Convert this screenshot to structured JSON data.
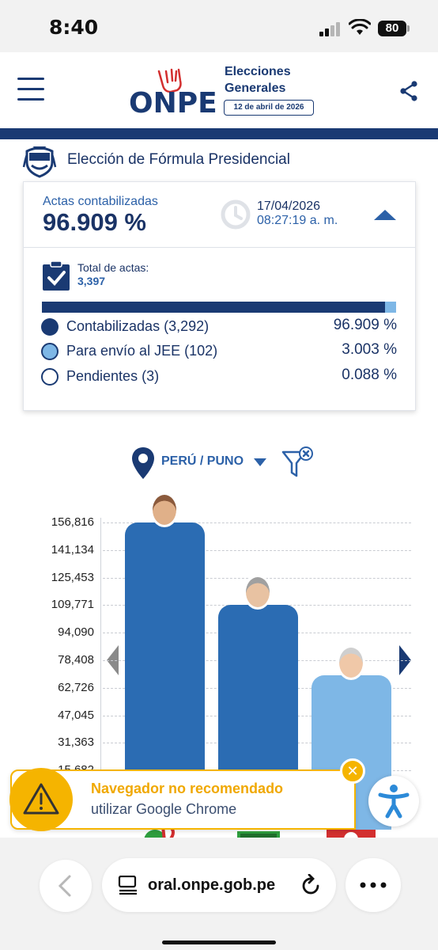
{
  "status_bar": {
    "time": "8:40",
    "battery": "80"
  },
  "header": {
    "logo_text": "ONPE",
    "title_line1": "Elecciones",
    "title_line2": "Generales",
    "date_badge": "12 de abril de 2026"
  },
  "election": {
    "title": "Elección de Fórmula Presidencial"
  },
  "summary": {
    "actas_label": "Actas contabilizadas",
    "actas_value": "96.909 %",
    "updated_date": "17/04/2026",
    "updated_time": "08:27:19 a. m.",
    "total_label": "Total de actas:",
    "total_value": "3,397",
    "progress": {
      "counted_fraction": 0.96909,
      "jee_fraction": 0.03003
    },
    "legend": [
      {
        "label": "Contabilizadas (3,292)",
        "pct": "96.909 %",
        "color": "#1a3a73"
      },
      {
        "label": "Para envío al JEE (102)",
        "pct": "3.003 %",
        "color": "#7eb7e6"
      },
      {
        "label": "Pendientes (3)",
        "pct": "0.088 %",
        "color": "#ffffff"
      }
    ]
  },
  "location": {
    "label": "PERÚ / PUNO"
  },
  "chart_data": {
    "type": "bar",
    "ylim": [
      0,
      156816
    ],
    "y_ticks": [
      "156,816",
      "141,134",
      "125,453",
      "109,771",
      "94,090",
      "78,408",
      "62,726",
      "47,045",
      "31,363",
      "15,682"
    ],
    "values": [
      156816,
      110000,
      70000
    ],
    "colors": [
      "#2b6cb3",
      "#2b6cb3",
      "#7eb7e6"
    ],
    "grid": true
  },
  "toast": {
    "title": "Navegador no recomendado",
    "subtitle": "utilizar Google Chrome",
    "close_label": "✕"
  },
  "browser": {
    "address": "oral.onpe.gob.pe"
  },
  "colors": {
    "brand_navy": "#1a3a73",
    "brand_blue": "#2c61a8",
    "light_blue": "#7eb7e6",
    "warning": "#f5b400"
  }
}
